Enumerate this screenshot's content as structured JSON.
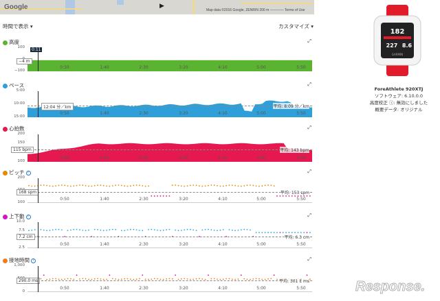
{
  "map": {
    "logo": "Google",
    "attribution": "Map data ©2016 Google, ZENRIN   200 m ————   Terms of Use",
    "play_icon": "play-icon"
  },
  "toolbar": {
    "view_mode": "時間で表示 ▾",
    "customize": "カスタマイズ ▾"
  },
  "panels": {
    "altitude": {
      "title": "高度",
      "color": "#5ab431",
      "y_ticks": [
        "100",
        "0",
        "−100"
      ],
      "value_box": "−4 m",
      "cursor_time": "0:11"
    },
    "pace": {
      "title": "ペース",
      "color": "#2e9fd9",
      "y_ticks": [
        "5:00",
        "10:00",
        "15:00"
      ],
      "value_box": "12:04 分／km",
      "average": "平均: 8:09 分／km"
    },
    "heart_rate": {
      "title": "心拍数",
      "color": "#e5194f",
      "y_ticks": [
        "200",
        "150",
        "125",
        "100"
      ],
      "value_box": "115 bpm",
      "average": "平均: 143 bpm"
    },
    "cadence": {
      "title": "ピッチ",
      "color": "#e68a00",
      "y_ticks": [
        "200",
        "150",
        "100"
      ],
      "value_box": "168 spm",
      "average": "平均: 153 spm"
    },
    "vertical_oscillation": {
      "title": "上下動",
      "color": "#d117c5",
      "y_ticks": [
        "10.0",
        "7.5",
        "5.0",
        "2.5"
      ],
      "value_box": "7.2 cm",
      "average": "平均: 6.3 cm"
    },
    "ground_contact": {
      "title": "接地時間",
      "color": "#ef7f1a",
      "y_ticks": [
        "1,000",
        "500",
        "0"
      ],
      "value_box": "290.0 ms",
      "average": "平均: 301 E ms"
    }
  },
  "x_ticks": [
    "0:50",
    "1:40",
    "2:30",
    "3:20",
    "4:10",
    "5:00",
    "5:50"
  ],
  "device": {
    "name": "ForeAthlete 920XTJ",
    "software": "ソフトウェア: 6.10.0.0",
    "calibration": "高度校正 ⓘ: 無効にしました",
    "summary": "概要データ: オリジナル",
    "screen_values": [
      "182",
      "227",
      "8.6"
    ],
    "brand": "GARMIN"
  },
  "watermark": "Response."
}
